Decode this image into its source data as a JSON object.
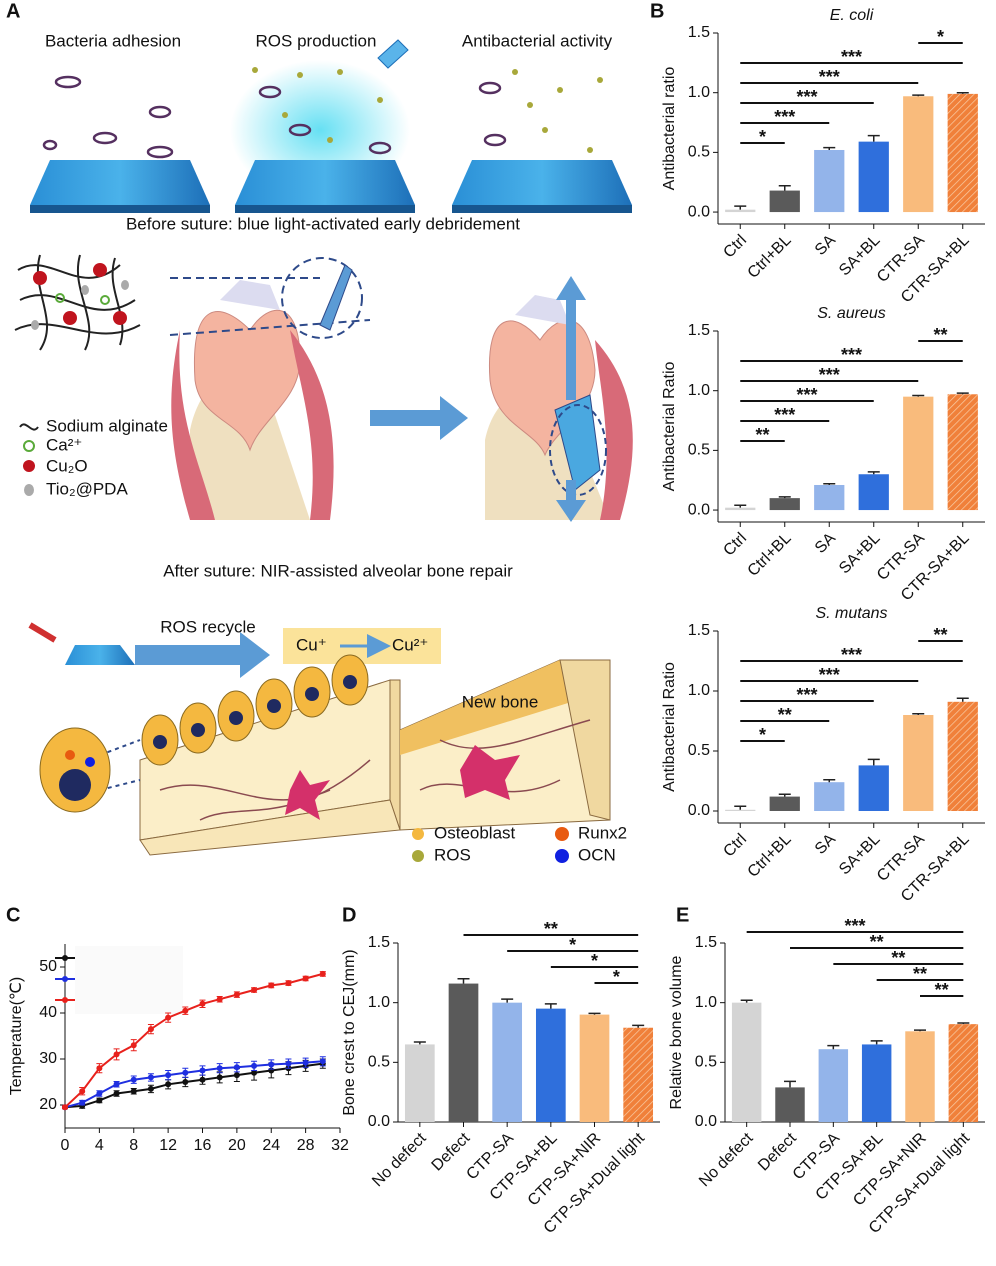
{
  "panel_labels": [
    "A",
    "B",
    "C",
    "D",
    "E"
  ],
  "diagram": {
    "steps": [
      "Bacteria adhesion",
      "ROS production",
      "Antibacterial activity"
    ],
    "before_caption": "Before suture: blue light-activated early debridement",
    "materials": [
      "Sodium alginate",
      "Ca²⁺",
      "Cu₂O",
      "Tio₂@PDA"
    ],
    "after_caption": "After suture: NIR-assisted alveolar bone repair",
    "ros_recycle": "ROS recycle",
    "cu_from": "Cu⁺",
    "cu_to": "Cu²⁺",
    "new_bone": "New bone",
    "cell_legend": [
      "Osteoblast",
      "ROS",
      "Runx2",
      "OCN"
    ]
  },
  "chart_data": [
    {
      "type": "bar",
      "title": "E. coli",
      "y_label": "Antibacterial ratio",
      "categories": [
        "Ctrl",
        "Ctrl+BL",
        "SA",
        "SA+BL",
        "CTR-SA",
        "CTR-SA+BL"
      ],
      "values": [
        0.02,
        0.18,
        0.52,
        0.59,
        0.97,
        0.99
      ],
      "errors": [
        0.03,
        0.04,
        0.02,
        0.05,
        0.01,
        0.01
      ],
      "colors": [
        "#d4d4d4",
        "#5a5a5a",
        "#93b4ea",
        "#2f6fdc",
        "#f9bb7c",
        "#f0803a"
      ],
      "hatched": [
        false,
        false,
        false,
        false,
        false,
        true
      ],
      "ylim": [
        -0.1,
        1.5
      ],
      "yticks": [
        {
          "value": 0,
          "label": "0.0"
        },
        {
          "value": 0.5,
          "label": "0.5"
        },
        {
          "value": 1,
          "label": "1.0"
        },
        {
          "value": 1.5,
          "label": "1.5"
        }
      ],
      "significance": [
        {
          "from": 4,
          "to": 5,
          "label": "*"
        },
        {
          "from": 0,
          "to": 5,
          "label": "***"
        },
        {
          "from": 0,
          "to": 4,
          "label": "***"
        },
        {
          "from": 0,
          "to": 3,
          "label": "***"
        },
        {
          "from": 0,
          "to": 2,
          "label": "***"
        },
        {
          "from": 0,
          "to": 1,
          "label": "*"
        }
      ]
    },
    {
      "type": "bar",
      "title": "S. aureus",
      "y_label": "Antibacterial Ratio",
      "categories": [
        "Ctrl",
        "Ctrl+BL",
        "SA",
        "SA+BL",
        "CTR-SA",
        "CTR-SA+BL"
      ],
      "values": [
        0.02,
        0.1,
        0.21,
        0.3,
        0.95,
        0.97
      ],
      "errors": [
        0.02,
        0.01,
        0.01,
        0.02,
        0.01,
        0.01
      ],
      "colors": [
        "#d4d4d4",
        "#5a5a5a",
        "#93b4ea",
        "#2f6fdc",
        "#f9bb7c",
        "#f0803a"
      ],
      "hatched": [
        false,
        false,
        false,
        false,
        false,
        true
      ],
      "ylim": [
        -0.1,
        1.5
      ],
      "yticks": [
        {
          "value": 0,
          "label": "0.0"
        },
        {
          "value": 0.5,
          "label": "0.5"
        },
        {
          "value": 1,
          "label": "1.0"
        },
        {
          "value": 1.5,
          "label": "1.5"
        }
      ],
      "significance": [
        {
          "from": 4,
          "to": 5,
          "label": "**"
        },
        {
          "from": 0,
          "to": 5,
          "label": "***"
        },
        {
          "from": 0,
          "to": 4,
          "label": "***"
        },
        {
          "from": 0,
          "to": 3,
          "label": "***"
        },
        {
          "from": 0,
          "to": 2,
          "label": "***"
        },
        {
          "from": 0,
          "to": 1,
          "label": "**"
        }
      ]
    },
    {
      "type": "bar",
      "title": "S. mutans",
      "y_label": "Antibacterial Ratio",
      "categories": [
        "Ctrl",
        "Ctrl+BL",
        "SA",
        "SA+BL",
        "CTR-SA",
        "CTR-SA+BL"
      ],
      "values": [
        0.01,
        0.12,
        0.24,
        0.38,
        0.8,
        0.91
      ],
      "errors": [
        0.03,
        0.02,
        0.02,
        0.05,
        0.01,
        0.03
      ],
      "colors": [
        "#d4d4d4",
        "#5a5a5a",
        "#93b4ea",
        "#2f6fdc",
        "#f9bb7c",
        "#f0803a"
      ],
      "hatched": [
        false,
        false,
        false,
        false,
        false,
        true
      ],
      "ylim": [
        -0.1,
        1.5
      ],
      "yticks": [
        {
          "value": 0,
          "label": "0.0"
        },
        {
          "value": 0.5,
          "label": "0.5"
        },
        {
          "value": 1,
          "label": "1.0"
        },
        {
          "value": 1.5,
          "label": "1.5"
        }
      ],
      "significance": [
        {
          "from": 4,
          "to": 5,
          "label": "**"
        },
        {
          "from": 0,
          "to": 5,
          "label": "***"
        },
        {
          "from": 0,
          "to": 4,
          "label": "***"
        },
        {
          "from": 0,
          "to": 3,
          "label": "***"
        },
        {
          "from": 0,
          "to": 2,
          "label": "**"
        },
        {
          "from": 0,
          "to": 1,
          "label": "*"
        }
      ]
    },
    {
      "type": "line",
      "y_label": "Temperature(℃)",
      "x": [
        0,
        2,
        4,
        6,
        8,
        10,
        12,
        14,
        16,
        18,
        20,
        22,
        24,
        26,
        28,
        30
      ],
      "series": [
        {
          "color": "#111111",
          "values": [
            19.5,
            19.8,
            21,
            22.5,
            23,
            23.5,
            24.5,
            25,
            25.5,
            26,
            26.5,
            27,
            27.5,
            28,
            28.5,
            29
          ],
          "errors": [
            0.3,
            0.5,
            0.5,
            0.6,
            0.6,
            0.8,
            1,
            1,
            1,
            1.2,
            1.4,
            1.6,
            1.6,
            1.4,
            1.2,
            1
          ]
        },
        {
          "color": "#1f2fe0",
          "values": [
            19.5,
            20.5,
            22.5,
            24.5,
            25.5,
            26,
            26.5,
            27,
            27.5,
            28,
            28.2,
            28.5,
            28.8,
            29,
            29.2,
            29.5
          ],
          "errors": [
            0.3,
            0.5,
            0.6,
            0.6,
            0.8,
            0.8,
            1,
            1,
            1,
            1,
            1,
            1,
            1,
            1,
            1,
            1
          ]
        },
        {
          "color": "#e8211c",
          "values": [
            19.5,
            23,
            28,
            31,
            33,
            36.5,
            39,
            40.5,
            42,
            43,
            44,
            45,
            46,
            46.5,
            47.5,
            48.5
          ],
          "errors": [
            0.3,
            0.8,
            1,
            1.2,
            1.2,
            1,
            1,
            0.8,
            0.8,
            0.6,
            0.6,
            0.5,
            0.5,
            0.5,
            0.5,
            0.5
          ]
        }
      ],
      "xlim": [
        0,
        32
      ],
      "xticks": [
        0,
        4,
        8,
        12,
        16,
        20,
        24,
        28,
        32
      ],
      "ylim": [
        15,
        55
      ],
      "yticks": [
        20,
        30,
        40,
        50
      ]
    },
    {
      "type": "bar",
      "y_label": "Bone crest to CEJ(mm)",
      "categories": [
        "No defect",
        "Defect",
        "CTP-SA",
        "CTP-SA+BL",
        "CTP-SA+NIR",
        "CTP-SA+Dual light"
      ],
      "values": [
        0.65,
        1.16,
        1.0,
        0.95,
        0.9,
        0.79
      ],
      "errors": [
        0.02,
        0.04,
        0.03,
        0.04,
        0.01,
        0.02
      ],
      "colors": [
        "#d4d4d4",
        "#5a5a5a",
        "#93b4ea",
        "#2f6fdc",
        "#f9bb7c",
        "#f0803a"
      ],
      "hatched": [
        false,
        false,
        false,
        false,
        false,
        true
      ],
      "ylim": [
        0,
        1.5
      ],
      "yticks": [
        {
          "value": 0,
          "label": "0.0"
        },
        {
          "value": 0.5,
          "label": "0.5"
        },
        {
          "value": 1,
          "label": "1.0"
        },
        {
          "value": 1.5,
          "label": "1.5"
        }
      ],
      "significance": [
        {
          "from": 1,
          "to": 5,
          "label": "**"
        },
        {
          "from": 2,
          "to": 5,
          "label": "*"
        },
        {
          "from": 3,
          "to": 5,
          "label": "*"
        },
        {
          "from": 4,
          "to": 5,
          "label": "*"
        }
      ]
    },
    {
      "type": "bar",
      "y_label": "Relative bone volume",
      "categories": [
        "No defect",
        "Defect",
        "CTP-SA",
        "CTP-SA+BL",
        "CTP-SA+NIR",
        "CTP-SA+Dual light"
      ],
      "values": [
        1.0,
        0.29,
        0.61,
        0.65,
        0.76,
        0.82
      ],
      "errors": [
        0.02,
        0.05,
        0.03,
        0.03,
        0.01,
        0.01
      ],
      "colors": [
        "#d4d4d4",
        "#5a5a5a",
        "#93b4ea",
        "#2f6fdc",
        "#f9bb7c",
        "#f0803a"
      ],
      "hatched": [
        false,
        false,
        false,
        false,
        false,
        true
      ],
      "ylim": [
        0,
        1.5
      ],
      "yticks": [
        {
          "value": 0,
          "label": "0.0"
        },
        {
          "value": 0.5,
          "label": "0.5"
        },
        {
          "value": 1,
          "label": "1.0"
        },
        {
          "value": 1.5,
          "label": "1.5"
        }
      ],
      "significance": [
        {
          "from": 0,
          "to": 5,
          "label": "***"
        },
        {
          "from": 1,
          "to": 5,
          "label": "**"
        },
        {
          "from": 2,
          "to": 5,
          "label": "**"
        },
        {
          "from": 3,
          "to": 5,
          "label": "**"
        },
        {
          "from": 4,
          "to": 5,
          "label": "**"
        }
      ]
    }
  ]
}
